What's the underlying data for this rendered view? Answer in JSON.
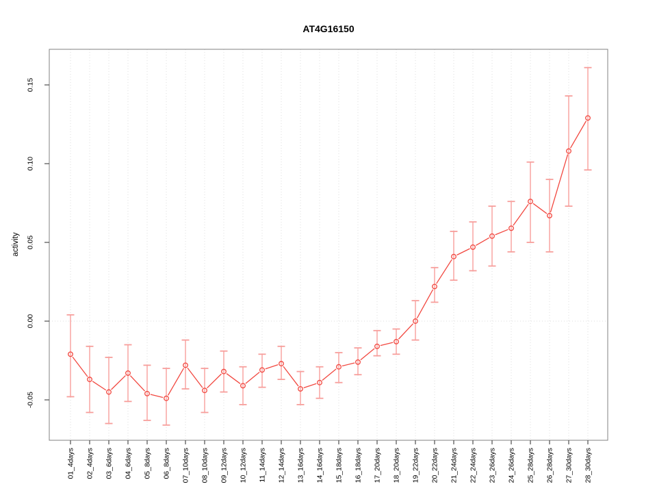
{
  "figure": {
    "title": "AT4G16150",
    "ylabel": "activity"
  },
  "chart_data": {
    "type": "scatter",
    "title": "AT4G16150",
    "xlabel": "",
    "ylabel": "activity",
    "legend": "none",
    "grid": {
      "vertical_at_each_category": true,
      "horizontal_at_zero_only": true,
      "style": "dotted"
    },
    "categories": [
      "01_4days",
      "02_4days",
      "03_6days",
      "04_6days",
      "05_8days",
      "06_8days",
      "07_10days",
      "08_10days",
      "09_12days",
      "10_12days",
      "11_14days",
      "12_14days",
      "13_16days",
      "14_16days",
      "15_18days",
      "16_18days",
      "17_20days",
      "18_20days",
      "19_22days",
      "20_22days",
      "21_24days",
      "22_24days",
      "23_26days",
      "24_26days",
      "25_28days",
      "26_28days",
      "27_30days",
      "28_30days"
    ],
    "values": [
      -0.021,
      -0.037,
      -0.045,
      -0.033,
      -0.046,
      -0.049,
      -0.028,
      -0.044,
      -0.032,
      -0.041,
      -0.031,
      -0.027,
      -0.043,
      -0.039,
      -0.029,
      -0.026,
      -0.016,
      -0.013,
      0.0,
      0.022,
      0.041,
      0.047,
      0.054,
      0.059,
      0.076,
      0.067,
      0.108,
      0.129
    ],
    "error_high": [
      0.004,
      -0.016,
      -0.023,
      -0.015,
      -0.028,
      -0.03,
      -0.012,
      -0.03,
      -0.019,
      -0.029,
      -0.021,
      -0.016,
      -0.032,
      -0.029,
      -0.02,
      -0.017,
      -0.006,
      -0.005,
      0.013,
      0.034,
      0.057,
      0.063,
      0.073,
      0.076,
      0.101,
      0.09,
      0.143,
      0.161
    ],
    "error_low": [
      -0.048,
      -0.058,
      -0.065,
      -0.051,
      -0.063,
      -0.066,
      -0.043,
      -0.058,
      -0.045,
      -0.053,
      -0.042,
      -0.037,
      -0.053,
      -0.049,
      -0.039,
      -0.034,
      -0.022,
      -0.021,
      -0.012,
      0.012,
      0.026,
      0.032,
      0.035,
      0.044,
      0.05,
      0.044,
      0.073,
      0.096
    ],
    "yticks": [
      -0.05,
      0,
      0.05,
      0.1,
      0.15
    ],
    "ytick_labels": [
      "-0.05",
      "0.00",
      "0.05",
      "0.10",
      "0.15"
    ],
    "ylim": [
      -0.07565,
      0.17261
    ],
    "colors": {
      "series": "#f2473f",
      "error_bar": "#f79e9b",
      "grid": "#dedede",
      "box": "#808080",
      "tick": "#4d4d4d",
      "text": "#000000",
      "background": "#ffffff"
    }
  }
}
